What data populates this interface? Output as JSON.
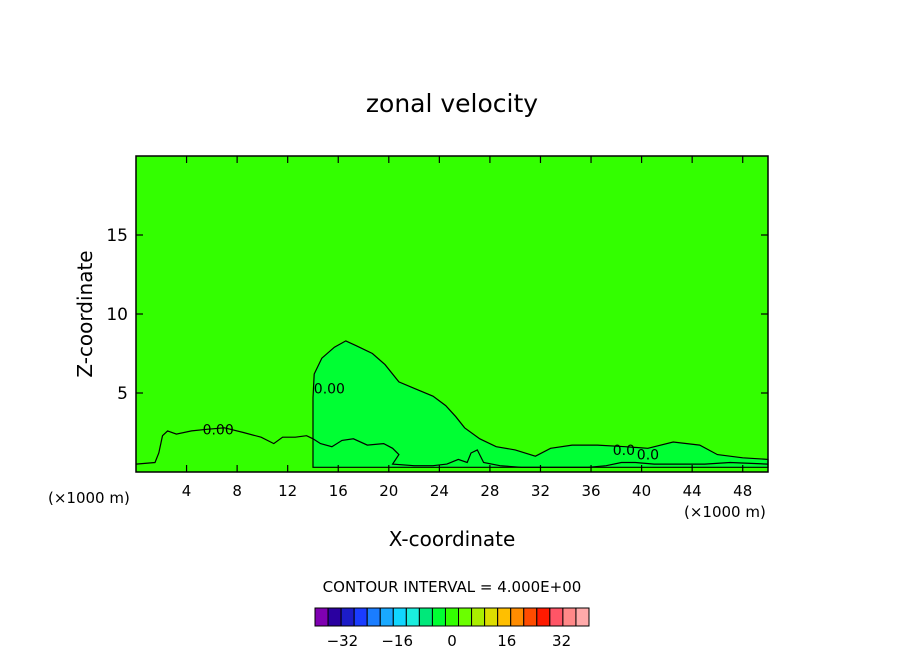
{
  "chart_data": {
    "type": "contour",
    "title": "zonal velocity",
    "xlabel": "X-coordinate",
    "ylabel": "Z-coordinate",
    "x_unit": "(×1000 m)",
    "xlim": [
      0,
      50
    ],
    "ylim": [
      0,
      20
    ],
    "x_ticks": [
      4,
      8,
      12,
      16,
      20,
      24,
      28,
      32,
      36,
      40,
      44,
      48
    ],
    "y_ticks": [
      5,
      10,
      15
    ],
    "background_fill_color": "#33ff00",
    "contour_fill_color": "#00ff33",
    "contour_interval_label": "CONTOUR INTERVAL = 4.000E+00",
    "contour_labels": [
      {
        "text": "0.00",
        "x": 6.5,
        "y": 2.7
      },
      {
        "text": "0.00",
        "x": 15.3,
        "y": 5.3
      },
      {
        "text": "0.0",
        "x": 38.6,
        "y": 1.4
      },
      {
        "text": "0.0",
        "x": 40.5,
        "y": 1.1
      }
    ],
    "zero_contour_outline": [
      [
        0,
        0.5
      ],
      [
        1.5,
        0.6
      ],
      [
        1.8,
        1.2
      ],
      [
        2.1,
        2.3
      ],
      [
        2.5,
        2.6
      ],
      [
        3.2,
        2.4
      ],
      [
        4.4,
        2.6
      ],
      [
        5.6,
        2.7
      ],
      [
        7,
        2.8
      ],
      [
        8.5,
        2.5
      ],
      [
        9.9,
        2.2
      ],
      [
        10.9,
        1.8
      ],
      [
        11.6,
        2.2
      ],
      [
        12.6,
        2.2
      ],
      [
        13.5,
        2.3
      ],
      [
        14,
        2.1
      ],
      [
        14.6,
        1.8
      ],
      [
        15.5,
        1.6
      ],
      [
        16.3,
        2.0
      ],
      [
        17.2,
        2.1
      ],
      [
        18.3,
        1.7
      ],
      [
        19.6,
        1.8
      ],
      [
        20.3,
        1.5
      ],
      [
        20.8,
        1.1
      ],
      [
        20.3,
        0.5
      ],
      [
        22,
        0.4
      ],
      [
        23.5,
        0.4
      ],
      [
        24.6,
        0.5
      ],
      [
        25.5,
        0.8
      ],
      [
        26.2,
        0.6
      ],
      [
        26.5,
        1.2
      ],
      [
        27,
        1.4
      ],
      [
        27.5,
        0.6
      ],
      [
        28.8,
        0.4
      ],
      [
        30.5,
        0.3
      ],
      [
        32,
        0.3
      ],
      [
        34,
        0.3
      ],
      [
        35.8,
        0.3
      ],
      [
        37.2,
        0.4
      ],
      [
        38.4,
        0.6
      ],
      [
        39.5,
        0.6
      ],
      [
        41,
        0.5
      ],
      [
        43,
        0.5
      ],
      [
        45,
        0.5
      ],
      [
        47,
        0.6
      ],
      [
        50,
        0.5
      ]
    ],
    "main_feature": [
      [
        14,
        4.7
      ],
      [
        14.1,
        6.2
      ],
      [
        14.7,
        7.2
      ],
      [
        15.7,
        7.9
      ],
      [
        16.6,
        8.3
      ],
      [
        17.4,
        8.0
      ],
      [
        18.7,
        7.5
      ],
      [
        19.7,
        6.8
      ],
      [
        20.8,
        5.7
      ],
      [
        22,
        5.3
      ],
      [
        23.5,
        4.8
      ],
      [
        24.5,
        4.2
      ],
      [
        25.3,
        3.5
      ],
      [
        26,
        2.8
      ],
      [
        27.2,
        2.1
      ],
      [
        28.5,
        1.6
      ],
      [
        30,
        1.4
      ],
      [
        31.6,
        1.0
      ],
      [
        32.8,
        1.5
      ],
      [
        34.5,
        1.7
      ],
      [
        36.5,
        1.7
      ],
      [
        38.7,
        1.6
      ],
      [
        40.5,
        1.5
      ],
      [
        42.5,
        1.9
      ],
      [
        44.6,
        1.7
      ],
      [
        46,
        1.1
      ],
      [
        48,
        0.9
      ],
      [
        50,
        0.8
      ]
    ],
    "legend": {
      "colors": [
        "#7f00b2",
        "#2a00a0",
        "#1c1cc8",
        "#1a3cff",
        "#1a7dff",
        "#19a9ff",
        "#11d6ff",
        "#1aeede",
        "#00e87a",
        "#00ff33",
        "#33ff00",
        "#6bff00",
        "#aaee00",
        "#dddd00",
        "#ffbf00",
        "#ff8c00",
        "#ff4c00",
        "#ff1a00",
        "#ff5566",
        "#ff8888",
        "#ffaaaa"
      ],
      "tick_labels": [
        "−32",
        "−16",
        "0",
        "16",
        "32"
      ],
      "tick_values": [
        -32,
        -16,
        0,
        16,
        32
      ],
      "range": [
        -40,
        40
      ]
    }
  }
}
